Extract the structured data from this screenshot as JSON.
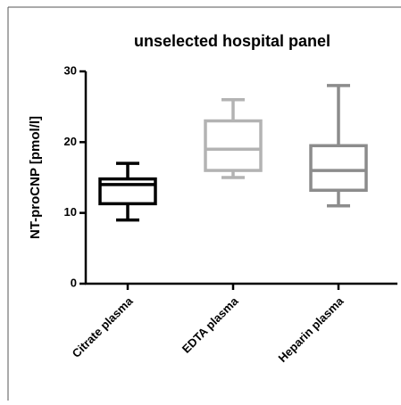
{
  "chart_data": {
    "type": "box",
    "title": "unselected hospital panel",
    "y_label": "NT-proCNP [pmol/l]",
    "categories": [
      "Citrate plasma",
      "EDTA plasma",
      "Heparin plasma"
    ],
    "boxes": [
      {
        "min": 9,
        "q1": 11.3,
        "median": 14,
        "q3": 14.8,
        "max": 17,
        "color": "#000000"
      },
      {
        "min": 15,
        "q1": 16,
        "median": 19,
        "q3": 23,
        "max": 26,
        "color": "#b3b3b3"
      },
      {
        "min": 11,
        "q1": 13.2,
        "median": 16,
        "q3": 19.5,
        "max": 28,
        "color": "#8c8c8c"
      }
    ],
    "ylim": [
      0,
      30
    ],
    "yticks": [
      0,
      10,
      20,
      30
    ]
  }
}
